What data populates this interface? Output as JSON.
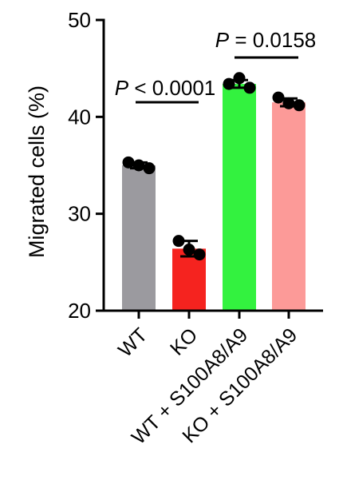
{
  "chart_data": {
    "type": "bar",
    "ylabel": "Migrated cells (%)",
    "ylim": [
      20,
      50
    ],
    "yticks": [
      "20",
      "30",
      "40",
      "50"
    ],
    "grid": false,
    "categories": [
      "WT",
      "KO",
      "WT + S100A8/A9",
      "KO + S100A8/A9"
    ],
    "values": [
      35.0,
      26.4,
      43.4,
      41.5
    ],
    "errors": [
      0.3,
      0.8,
      0.4,
      0.4
    ],
    "bar_colors": [
      "#9b9a9f",
      "#f5231f",
      "#33f23f",
      "#fc9a98"
    ],
    "points": [
      [
        35.3,
        35.0,
        34.7
      ],
      [
        27.2,
        26.3,
        25.8
      ],
      [
        43.4,
        44.0,
        43.0
      ],
      [
        42.0,
        41.4,
        41.2
      ]
    ],
    "annotations": [
      {
        "text": "P < 0.0001",
        "from": 0,
        "to": 1
      },
      {
        "text": "P = 0.0158",
        "from": 2,
        "to": 3
      }
    ]
  }
}
